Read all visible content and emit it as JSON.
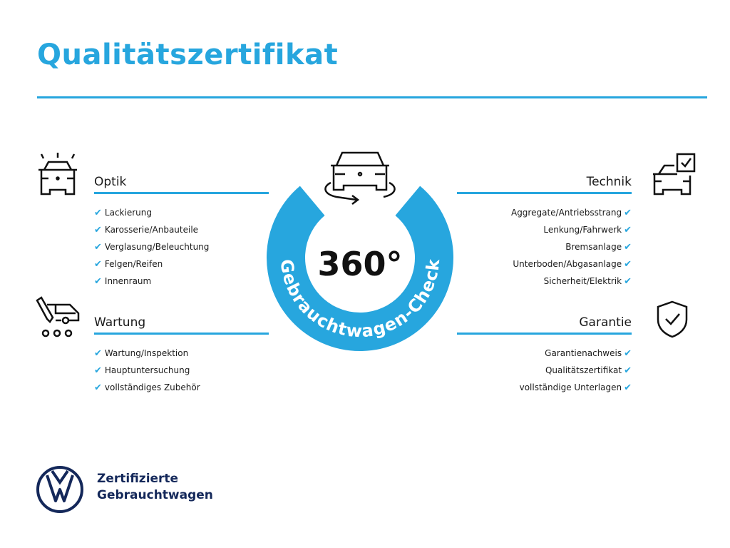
{
  "title": "Qualitätszertifikat",
  "center": {
    "big": "360°",
    "arc_text": "Gebrauchtwagen-Check"
  },
  "accent_color": "#27a6de",
  "sections": {
    "optik": {
      "heading": "Optik",
      "icon": "car-lights-icon",
      "items": [
        "Lackierung",
        "Karosserie/Anbauteile",
        "Verglasung/Beleuchtung",
        "Felgen/Reifen",
        "Innenraum"
      ]
    },
    "wartung": {
      "heading": "Wartung",
      "icon": "service-van-icon",
      "items": [
        "Wartung/Inspektion",
        "Hauptuntersuchung",
        "vollständiges Zubehör"
      ]
    },
    "technik": {
      "heading": "Technik",
      "icon": "car-checklist-icon",
      "items": [
        "Aggregate/Antriebsstrang",
        "Lenkung/Fahrwerk",
        "Bremsanlage",
        "Unterboden/Abgasanlage",
        "Sicherheit/Elektrik"
      ]
    },
    "garantie": {
      "heading": "Garantie",
      "icon": "shield-check-icon",
      "items": [
        "Garantienachweis",
        "Qualitätszertifikat",
        "vollständige Unterlagen"
      ]
    }
  },
  "checkmark": "✔",
  "footer": {
    "line1": "Zertifizierte",
    "line2": "Gebrauchtwagen",
    "logo_text": "VW"
  }
}
